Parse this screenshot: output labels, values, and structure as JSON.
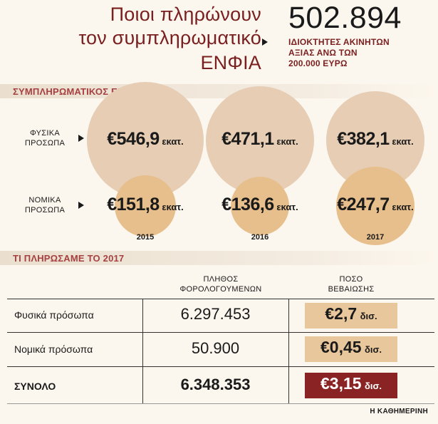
{
  "title": {
    "line1": "Ποιοι πληρώνουν",
    "line2": "τον συμπληρωματικό",
    "line3": "ΕΝΦΙΑ"
  },
  "headline_number": "502.894",
  "headline_sub": [
    "ΙΔΙΟΚΤΗΤΕΣ ΑΚΙΝΗΤΩΝ",
    "ΑΞΙΑΣ ΑΝΩ ΤΩΝ",
    "200.000 ΕΥΡΩ"
  ],
  "section1_title": "ΣΥΜΠΛΗΡΩΜΑΤΙΚΟΣ ΕΝΦΙΑ",
  "section2_title": "ΤΙ ΠΛΗΡΩΣΑΜΕ ΤΟ 2017",
  "colors": {
    "title_red": "#7a1f1f",
    "circle_individuals": "#e6cdb4",
    "circle_legal": "#e7bf8c",
    "highlight_box": "#e9c79c",
    "total_box": "#8a2424"
  },
  "chart_data": {
    "type": "bubble",
    "title": "ΣΥΜΠΛΗΡΩΜΑΤΙΚΟΣ ΕΝΦΙΑ",
    "categories": [
      "2015",
      "2016",
      "2017"
    ],
    "unit": "εκατ.",
    "series": [
      {
        "name": "ΦΥΣΙΚΑ ΠΡΟΣΩΠΑ",
        "name_lines": [
          "ΦΥΣΙΚΑ",
          "ΠΡΟΣΩΠΑ"
        ],
        "values": [
          546.9,
          471.1,
          382.1
        ],
        "labels": [
          "€546,9",
          "€471,1",
          "€382,1"
        ]
      },
      {
        "name": "ΝΟΜΙΚΑ ΠΡΟΣΩΠΑ",
        "name_lines": [
          "ΝΟΜΙΚΑ",
          "ΠΡΟΣΩΠΑ"
        ],
        "values": [
          151.8,
          136.6,
          247.7
        ],
        "labels": [
          "€151,8",
          "€136,6",
          "€247,7"
        ]
      }
    ]
  },
  "table": {
    "col_taxpayers": [
      "ΠΛΗΘΟΣ",
      "ΦΟΡΟΛΟΓΟΥΜΕΝΩΝ"
    ],
    "col_amount": [
      "ΠΟΣΟ",
      "ΒΕΒΑΙΩΣΗΣ"
    ],
    "rows": [
      {
        "label": "Φυσικά πρόσωπα",
        "taxpayers": "6.297.453",
        "amount": "€2,7",
        "unit": "δισ."
      },
      {
        "label": "Νομικά πρόσωπα",
        "taxpayers": "50.900",
        "amount": "€0,45",
        "unit": "δισ."
      }
    ],
    "total": {
      "label": "ΣΥΝΟΛΟ",
      "taxpayers": "6.348.353",
      "amount": "€3,15",
      "unit": "δισ."
    }
  },
  "source": "Η ΚΑΘΗΜΕΡΙΝΗ"
}
